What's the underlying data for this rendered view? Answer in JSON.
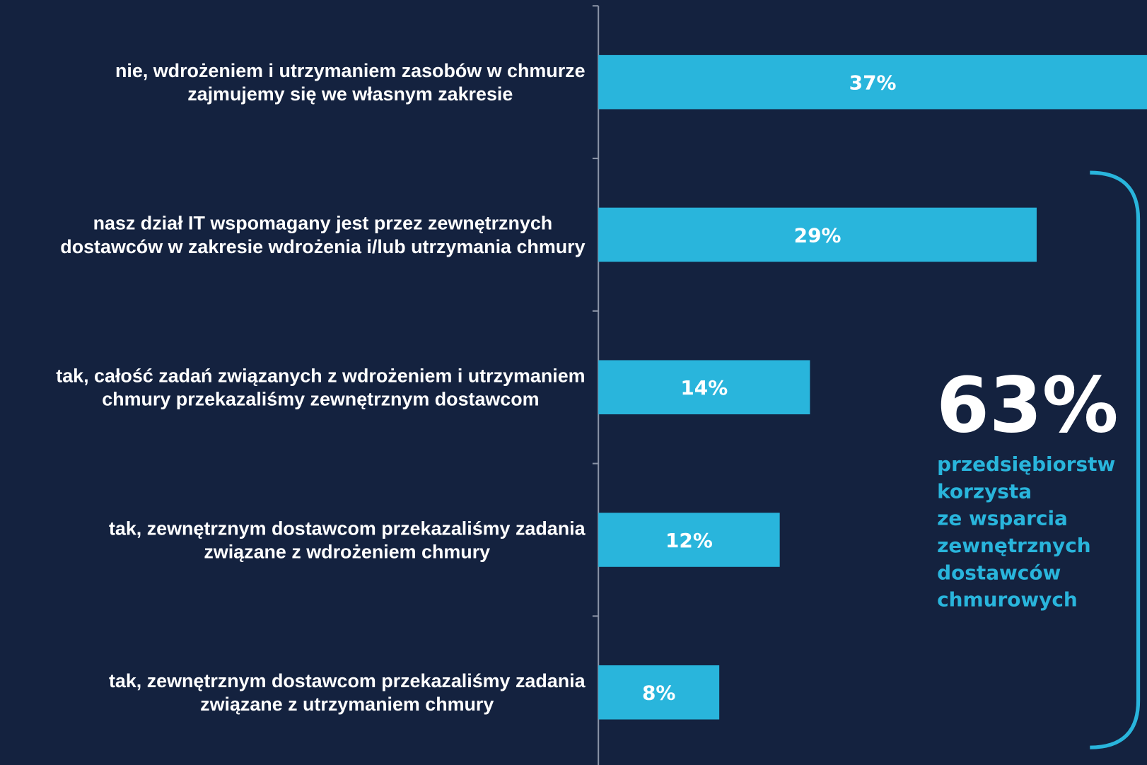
{
  "chart_data": {
    "type": "barh",
    "categories": [
      [
        "nie, wdrożeniem i utrzymaniem zasobów w chmurze",
        "zajmujemy się we własnym zakresie"
      ],
      [
        "nasz dział IT wspomagany jest przez zewnętrznych",
        "dostawców w zakresie wdrożenia i/lub utrzymania chmury"
      ],
      [
        "tak, całość zadań związanych z wdrożeniem i utrzymaniem",
        "chmury przekazaliśmy zewnętrznym dostawcom"
      ],
      [
        "tak, zewnętrznym dostawcom przekazaliśmy zadania",
        "związane z wdrożeniem chmury"
      ],
      [
        "tak, zewnętrznym dostawcom przekazaliśmy zadania",
        "związane z utrzymaniem chmury"
      ]
    ],
    "values": [
      37,
      29,
      14,
      12,
      8
    ],
    "value_labels": [
      "37%",
      "29%",
      "14%",
      "12%",
      "8%"
    ],
    "color": "#29b5dc",
    "xlim": [
      0,
      36.3
    ],
    "callout": {
      "value_label": "63%",
      "text": [
        "przedsiębiorstw",
        "korzysta",
        "ze wsparcia",
        "zewnętrznych",
        "dostawców",
        "chmurowych"
      ]
    }
  }
}
